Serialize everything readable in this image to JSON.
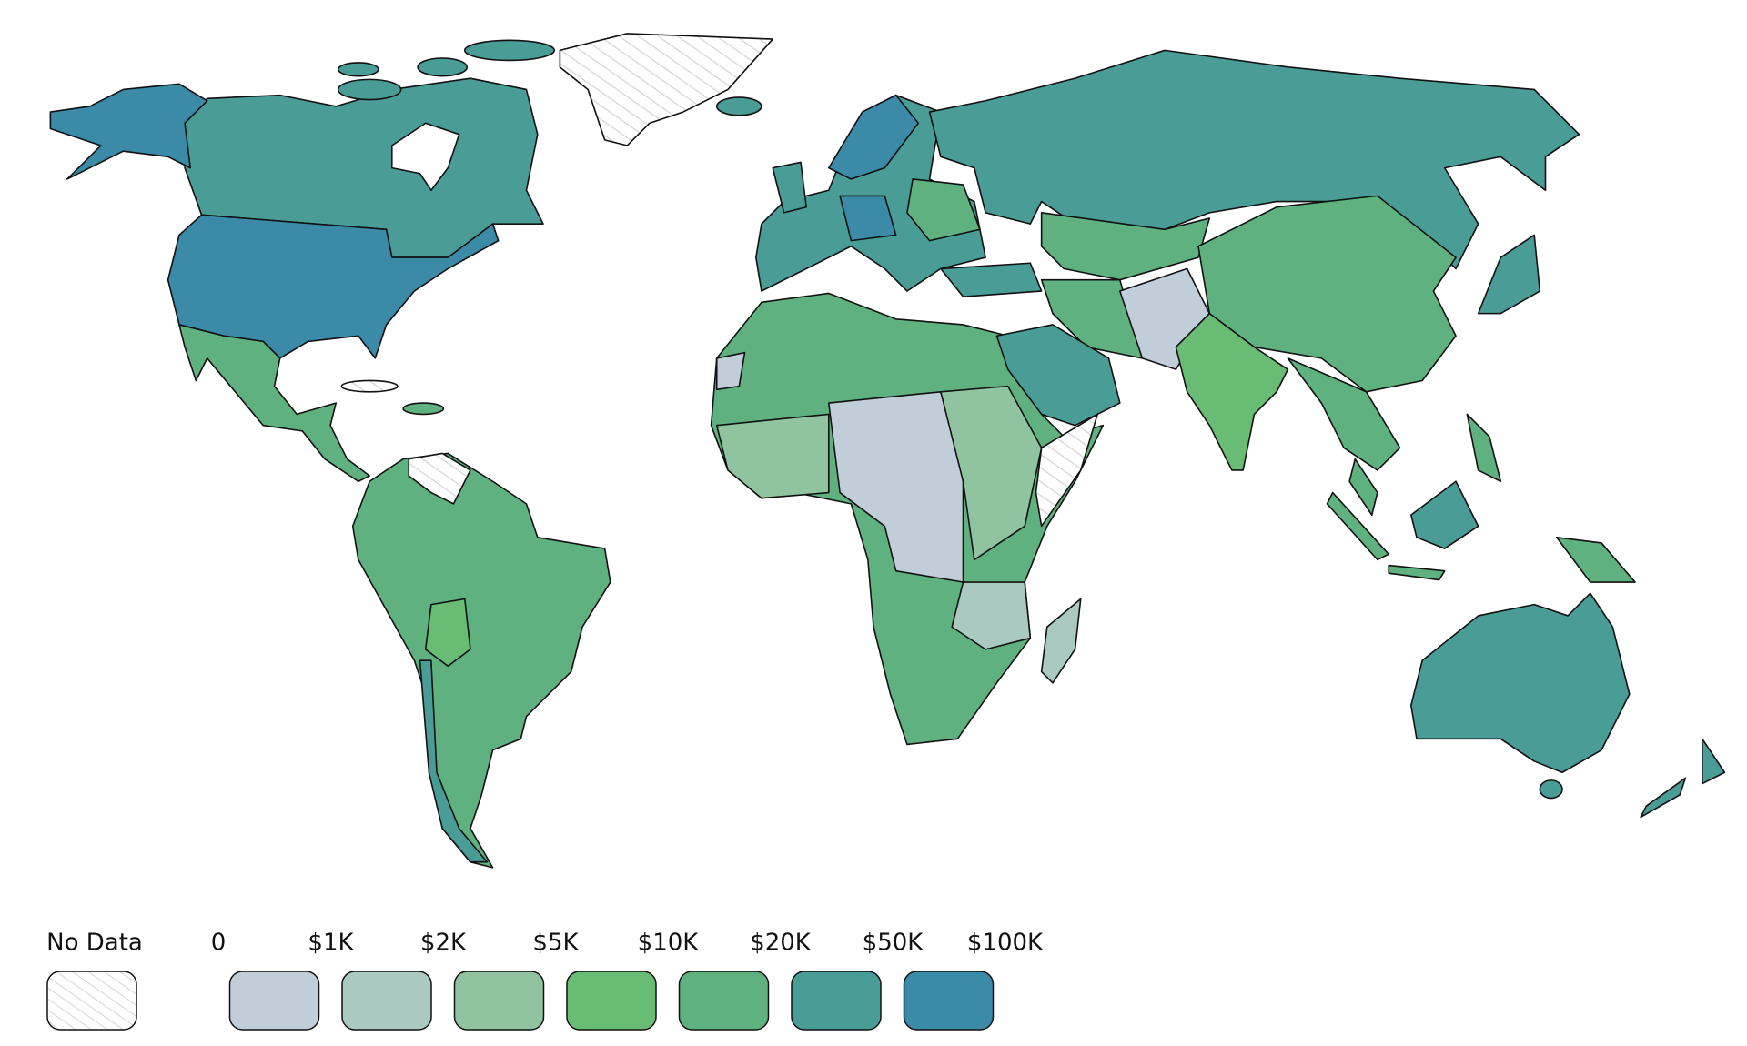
{
  "legend": {
    "no_data_label": "No Data",
    "ticks": [
      "0",
      "$1K",
      "$2K",
      "$5K",
      "$10K",
      "$20K",
      "$50K",
      "$100K"
    ],
    "colors": [
      "#c1cdd9",
      "#a9c9c1",
      "#90c4a0",
      "#68bc74",
      "#5fb27f",
      "#4a9c96",
      "#3a8aa8"
    ]
  }
}
